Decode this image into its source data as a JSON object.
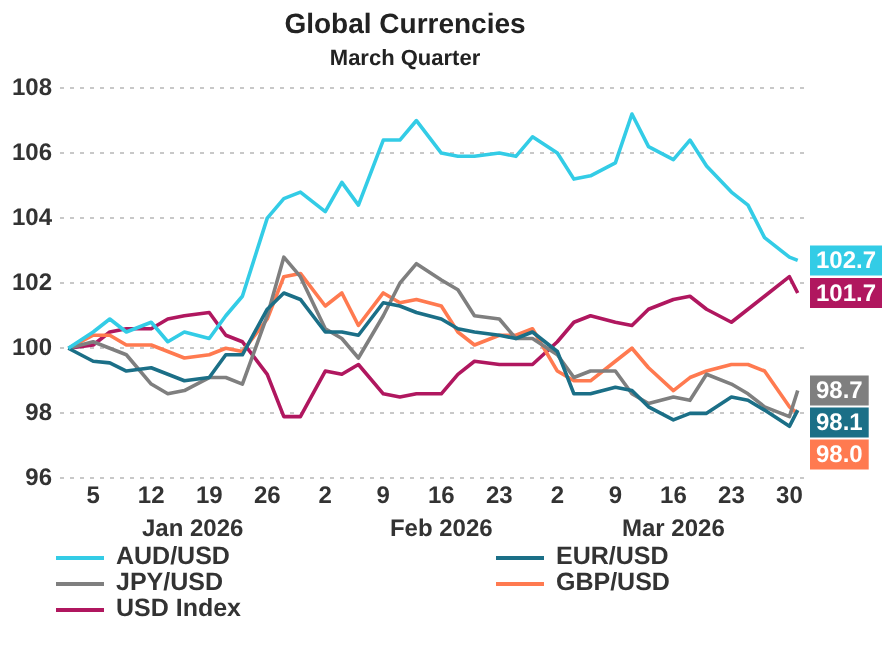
{
  "chart_data": {
    "type": "line",
    "title": "Global Currencies",
    "subtitle": "March Quarter",
    "x": [
      "2026-01-02",
      "2026-01-05",
      "2026-01-07",
      "2026-01-09",
      "2026-01-12",
      "2026-01-14",
      "2026-01-16",
      "2026-01-19",
      "2026-01-21",
      "2026-01-23",
      "2026-01-26",
      "2026-01-28",
      "2026-01-30",
      "2026-02-02",
      "2026-02-04",
      "2026-02-06",
      "2026-02-09",
      "2026-02-11",
      "2026-02-13",
      "2026-02-16",
      "2026-02-18",
      "2026-02-20",
      "2026-02-23",
      "2026-02-25",
      "2026-02-27",
      "2026-03-02",
      "2026-03-04",
      "2026-03-06",
      "2026-03-09",
      "2026-03-11",
      "2026-03-13",
      "2026-03-16",
      "2026-03-18",
      "2026-03-20",
      "2026-03-23",
      "2026-03-25",
      "2026-03-27",
      "2026-03-30",
      "2026-03-31"
    ],
    "series": [
      {
        "name": "AUD/USD",
        "color": "#33cce6",
        "values": [
          100.0,
          100.5,
          100.9,
          100.5,
          100.8,
          100.2,
          100.5,
          100.3,
          101.0,
          101.6,
          104.0,
          104.6,
          104.8,
          104.2,
          105.1,
          104.4,
          106.4,
          106.4,
          107.0,
          106.0,
          105.9,
          105.9,
          106.0,
          105.9,
          106.5,
          106.0,
          105.2,
          105.3,
          105.7,
          107.2,
          106.2,
          105.8,
          106.4,
          105.6,
          104.8,
          104.4,
          103.4,
          102.8,
          102.7
        ],
        "value_labels": [
          null,
          null,
          null,
          null,
          null,
          null,
          null,
          null,
          null,
          null,
          null,
          null,
          null,
          null,
          null,
          null,
          null,
          null,
          null,
          null,
          null,
          null,
          null,
          null,
          null,
          null,
          null,
          null,
          null,
          null,
          null,
          null,
          null,
          null,
          null,
          null,
          null,
          null,
          "102.7"
        ]
      },
      {
        "name": "EUR/USD",
        "color": "#1b6f87",
        "values": [
          100.0,
          99.6,
          99.55,
          99.3,
          99.4,
          99.2,
          99.0,
          99.1,
          99.8,
          99.8,
          101.2,
          101.7,
          101.5,
          100.5,
          100.5,
          100.4,
          101.4,
          101.3,
          101.1,
          100.9,
          100.6,
          100.5,
          100.4,
          100.3,
          100.5,
          99.9,
          98.6,
          98.6,
          98.8,
          98.7,
          98.2,
          97.8,
          98.0,
          98.0,
          98.5,
          98.4,
          98.1,
          97.6,
          98.1
        ],
        "value_labels": [
          null,
          null,
          null,
          null,
          null,
          null,
          null,
          null,
          null,
          null,
          null,
          null,
          null,
          null,
          null,
          null,
          null,
          null,
          null,
          null,
          null,
          null,
          null,
          null,
          null,
          null,
          null,
          null,
          null,
          null,
          null,
          null,
          null,
          null,
          null,
          null,
          null,
          null,
          "98.1"
        ]
      },
      {
        "name": "JPY/USD",
        "color": "#7f7f7f",
        "values": [
          100.0,
          100.2,
          100.0,
          99.8,
          98.9,
          98.6,
          98.7,
          99.1,
          99.1,
          98.9,
          101.0,
          102.8,
          102.2,
          100.6,
          100.3,
          99.7,
          101.0,
          102.0,
          102.6,
          102.1,
          101.8,
          101.0,
          100.9,
          100.3,
          100.3,
          99.8,
          99.1,
          99.3,
          99.3,
          98.6,
          98.3,
          98.5,
          98.4,
          99.2,
          98.9,
          98.6,
          98.2,
          97.9,
          98.7
        ],
        "value_labels": [
          null,
          null,
          null,
          null,
          null,
          null,
          null,
          null,
          null,
          null,
          null,
          null,
          null,
          null,
          null,
          null,
          null,
          null,
          null,
          null,
          null,
          null,
          null,
          null,
          null,
          null,
          null,
          null,
          null,
          null,
          null,
          null,
          null,
          null,
          null,
          null,
          null,
          null,
          "98.7"
        ]
      },
      {
        "name": "GBP/USD",
        "color": "#ff7a50",
        "values": [
          100.0,
          100.4,
          100.4,
          100.1,
          100.1,
          99.9,
          99.7,
          99.8,
          100.0,
          99.9,
          100.9,
          102.2,
          102.3,
          101.3,
          101.7,
          100.7,
          101.7,
          101.4,
          101.5,
          101.3,
          100.5,
          100.1,
          100.4,
          100.4,
          100.6,
          99.3,
          99.0,
          99.0,
          99.6,
          100.0,
          99.4,
          98.7,
          99.1,
          99.3,
          99.5,
          99.5,
          99.3,
          98.2,
          98.0
        ],
        "value_labels": [
          null,
          null,
          null,
          null,
          null,
          null,
          null,
          null,
          null,
          null,
          null,
          null,
          null,
          null,
          null,
          null,
          null,
          null,
          null,
          null,
          null,
          null,
          null,
          null,
          null,
          null,
          null,
          null,
          null,
          null,
          null,
          null,
          null,
          null,
          null,
          null,
          null,
          null,
          "98.0"
        ]
      },
      {
        "name": "USD Index",
        "color": "#b0175f",
        "values": [
          100.0,
          100.1,
          100.5,
          100.6,
          100.6,
          100.9,
          101.0,
          101.1,
          100.4,
          100.2,
          99.2,
          97.9,
          97.9,
          99.3,
          99.2,
          99.5,
          98.6,
          98.5,
          98.6,
          98.6,
          99.2,
          99.6,
          99.5,
          99.5,
          99.5,
          100.2,
          100.8,
          101.0,
          100.8,
          100.7,
          101.2,
          101.5,
          101.6,
          101.2,
          100.8,
          101.2,
          101.6,
          102.2,
          101.7
        ],
        "value_labels": [
          null,
          null,
          null,
          null,
          null,
          null,
          null,
          null,
          null,
          null,
          null,
          null,
          null,
          null,
          null,
          null,
          null,
          null,
          null,
          null,
          null,
          null,
          null,
          null,
          null,
          null,
          null,
          null,
          null,
          null,
          null,
          null,
          null,
          null,
          null,
          null,
          null,
          null,
          "101.7"
        ]
      }
    ],
    "xlim": [
      "2026-01-01",
      "2026-04-01"
    ],
    "xticks": [
      {
        "value": "2026-01-05",
        "label": "5"
      },
      {
        "value": "2026-01-12",
        "label": "12"
      },
      {
        "value": "2026-01-19",
        "label": "19"
      },
      {
        "value": "2026-01-26",
        "label": "26"
      },
      {
        "value": "2026-02-02",
        "label": "2"
      },
      {
        "value": "2026-02-09",
        "label": "9"
      },
      {
        "value": "2026-02-16",
        "label": "16"
      },
      {
        "value": "2026-02-23",
        "label": "23"
      },
      {
        "value": "2026-03-02",
        "label": "2"
      },
      {
        "value": "2026-03-09",
        "label": "9"
      },
      {
        "value": "2026-03-16",
        "label": "16"
      },
      {
        "value": "2026-03-23",
        "label": "23"
      },
      {
        "value": "2026-03-30",
        "label": "30"
      }
    ],
    "x2lim": [
      "2026-01-01",
      "2026-04-01"
    ],
    "x2ticks": [
      {
        "value": "2026-01-17",
        "label": "Jan 2026"
      },
      {
        "value": "2026-02-16",
        "label": "Feb 2026"
      },
      {
        "value": "2026-03-16",
        "label": "Mar 2026"
      }
    ],
    "ylim": [
      96,
      108
    ],
    "yticks": [
      96,
      98,
      100,
      102,
      104,
      106,
      108
    ],
    "grid": "y",
    "legend": "bottom",
    "marker": "none",
    "line_style": "solid"
  }
}
